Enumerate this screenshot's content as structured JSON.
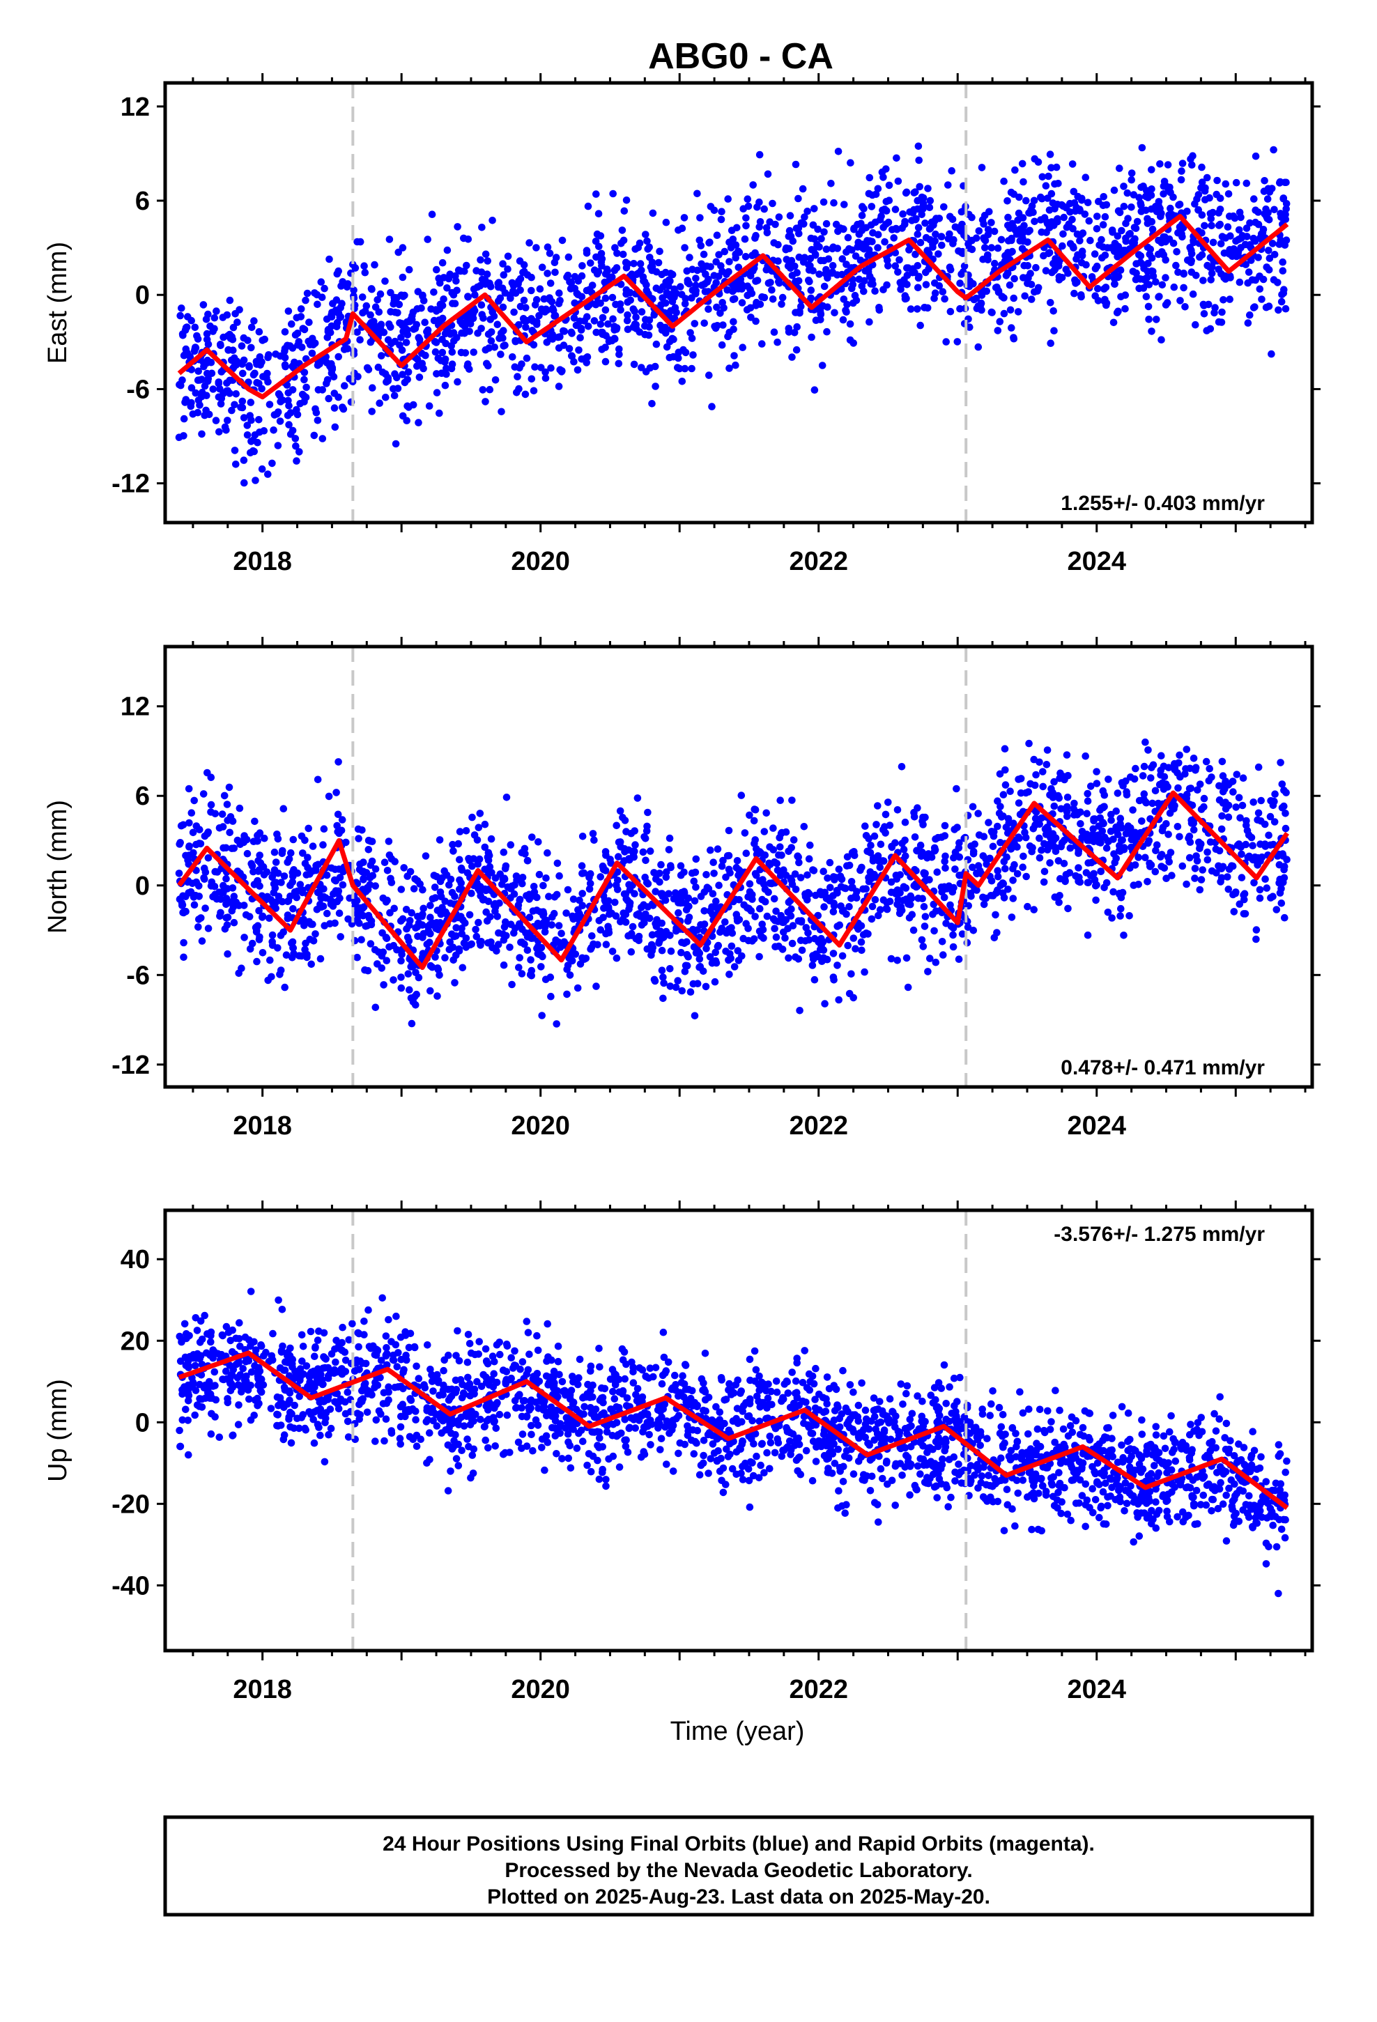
{
  "title": "ABG0 - CA",
  "colors": {
    "final_points": "#0000ff",
    "model_line": "#ff0000",
    "offset_lines": "#c8c8c8"
  },
  "chart_data": [
    {
      "type": "scatter",
      "component": "east",
      "ylabel": "East (mm)",
      "xlabel": "",
      "xlim": [
        2017.3,
        2025.55
      ],
      "ylim": [
        -14.5,
        13.5
      ],
      "yticks": [
        -12,
        -6,
        0,
        6,
        12
      ],
      "xticks": [
        2018,
        2020,
        2022,
        2024
      ],
      "xtick_labels": [
        "2018",
        "2020",
        "2022",
        "2024"
      ],
      "vlines": [
        2018.65,
        2023.06
      ],
      "rate_text": "1.255+/- 0.403 mm/yr",
      "rate_position": "bottom-right",
      "model": {
        "x": [
          2017.4,
          2017.6,
          2017.9,
          2018.0,
          2018.3,
          2018.6,
          2018.65,
          2019.0,
          2019.3,
          2019.6,
          2019.9,
          2020.2,
          2020.6,
          2020.95,
          2021.3,
          2021.6,
          2021.95,
          2022.3,
          2022.65,
          2023.0,
          2023.06,
          2023.3,
          2023.65,
          2023.95,
          2024.3,
          2024.6,
          2024.95,
          2025.37
        ],
        "y": [
          -5.0,
          -3.5,
          -6.0,
          -6.5,
          -4.5,
          -2.8,
          -1.2,
          -4.5,
          -2.0,
          0.0,
          -3.0,
          -1.2,
          1.2,
          -2.0,
          0.5,
          2.5,
          -0.8,
          1.8,
          3.5,
          0.2,
          -0.2,
          1.5,
          3.5,
          0.5,
          3.0,
          5.0,
          1.5,
          4.5
        ]
      },
      "scatter": {
        "n": 2300,
        "spread": 2.5,
        "seed": 11,
        "anchors": [
          [
            2017.4,
            -3
          ],
          [
            2018.0,
            -7
          ],
          [
            2018.6,
            -2
          ],
          [
            2019.6,
            -1
          ],
          [
            2020.6,
            0
          ],
          [
            2021.6,
            2
          ],
          [
            2022.6,
            4
          ],
          [
            2023.6,
            4
          ],
          [
            2024.6,
            3
          ],
          [
            2025.37,
            3
          ]
        ]
      }
    },
    {
      "type": "scatter",
      "component": "north",
      "ylabel": "North (mm)",
      "xlabel": "",
      "xlim": [
        2017.3,
        2025.55
      ],
      "ylim": [
        -13.5,
        16.0
      ],
      "yticks": [
        -12,
        -6,
        0,
        6,
        12
      ],
      "xticks": [
        2018,
        2020,
        2022,
        2024
      ],
      "xtick_labels": [
        "2018",
        "2020",
        "2022",
        "2024"
      ],
      "vlines": [
        2018.65,
        2023.06
      ],
      "rate_text": "0.478+/- 0.471 mm/yr",
      "rate_position": "bottom-right",
      "model": {
        "x": [
          2017.4,
          2017.6,
          2018.2,
          2018.55,
          2018.65,
          2019.15,
          2019.55,
          2020.15,
          2020.55,
          2021.15,
          2021.55,
          2022.15,
          2022.55,
          2023.0,
          2023.06,
          2023.15,
          2023.55,
          2024.15,
          2024.55,
          2025.15,
          2025.37
        ],
        "y": [
          0.0,
          2.5,
          -3.0,
          3.0,
          0.0,
          -5.5,
          1.0,
          -5.0,
          1.5,
          -4.0,
          1.8,
          -4.0,
          2.0,
          -2.5,
          0.8,
          0.0,
          5.5,
          0.5,
          6.2,
          0.5,
          3.5
        ]
      },
      "scatter": {
        "n": 2300,
        "spread": 2.5,
        "seed": 23,
        "anchors": [
          [
            2017.4,
            0
          ],
          [
            2018.6,
            0
          ],
          [
            2019.6,
            -2
          ],
          [
            2020.6,
            -1
          ],
          [
            2021.6,
            -1
          ],
          [
            2022.6,
            0
          ],
          [
            2023.6,
            3
          ],
          [
            2024.6,
            6
          ],
          [
            2025.37,
            2
          ]
        ]
      }
    },
    {
      "type": "scatter",
      "component": "up",
      "ylabel": "Up (mm)",
      "xlabel": "Time (year)",
      "xlim": [
        2017.3,
        2025.55
      ],
      "ylim": [
        -56,
        52
      ],
      "yticks": [
        -40,
        -20,
        0,
        20,
        40
      ],
      "xticks": [
        2018,
        2020,
        2022,
        2024
      ],
      "xtick_labels": [
        "2018",
        "2020",
        "2022",
        "2024"
      ],
      "vlines": [
        2018.65,
        2023.06
      ],
      "rate_text": "-3.576+/- 1.275 mm/yr",
      "rate_position": "top-right",
      "model": {
        "x": [
          2017.4,
          2017.9,
          2018.35,
          2018.9,
          2019.35,
          2019.9,
          2020.35,
          2020.9,
          2021.35,
          2021.9,
          2022.35,
          2022.9,
          2023.35,
          2023.9,
          2024.35,
          2024.9,
          2025.37
        ],
        "y": [
          11,
          17,
          6,
          13,
          2,
          10,
          -1,
          6,
          -4,
          3,
          -8,
          -1,
          -13,
          -6,
          -16,
          -9,
          -21
        ]
      },
      "scatter": {
        "n": 2300,
        "spread": 7.0,
        "seed": 37,
        "anchors": [
          [
            2017.4,
            12
          ],
          [
            2018.6,
            10
          ],
          [
            2019.6,
            6
          ],
          [
            2020.6,
            3
          ],
          [
            2021.6,
            -1
          ],
          [
            2022.6,
            -5
          ],
          [
            2023.6,
            -10
          ],
          [
            2024.6,
            -13
          ],
          [
            2025.37,
            -22
          ]
        ]
      }
    }
  ],
  "footer": {
    "lines": [
      "24 Hour Positions Using Final Orbits (blue) and Rapid Orbits (magenta).",
      "Processed by the Nevada Geodetic Laboratory.",
      "Plotted on 2025-Aug-23. Last data on 2025-May-20."
    ]
  }
}
